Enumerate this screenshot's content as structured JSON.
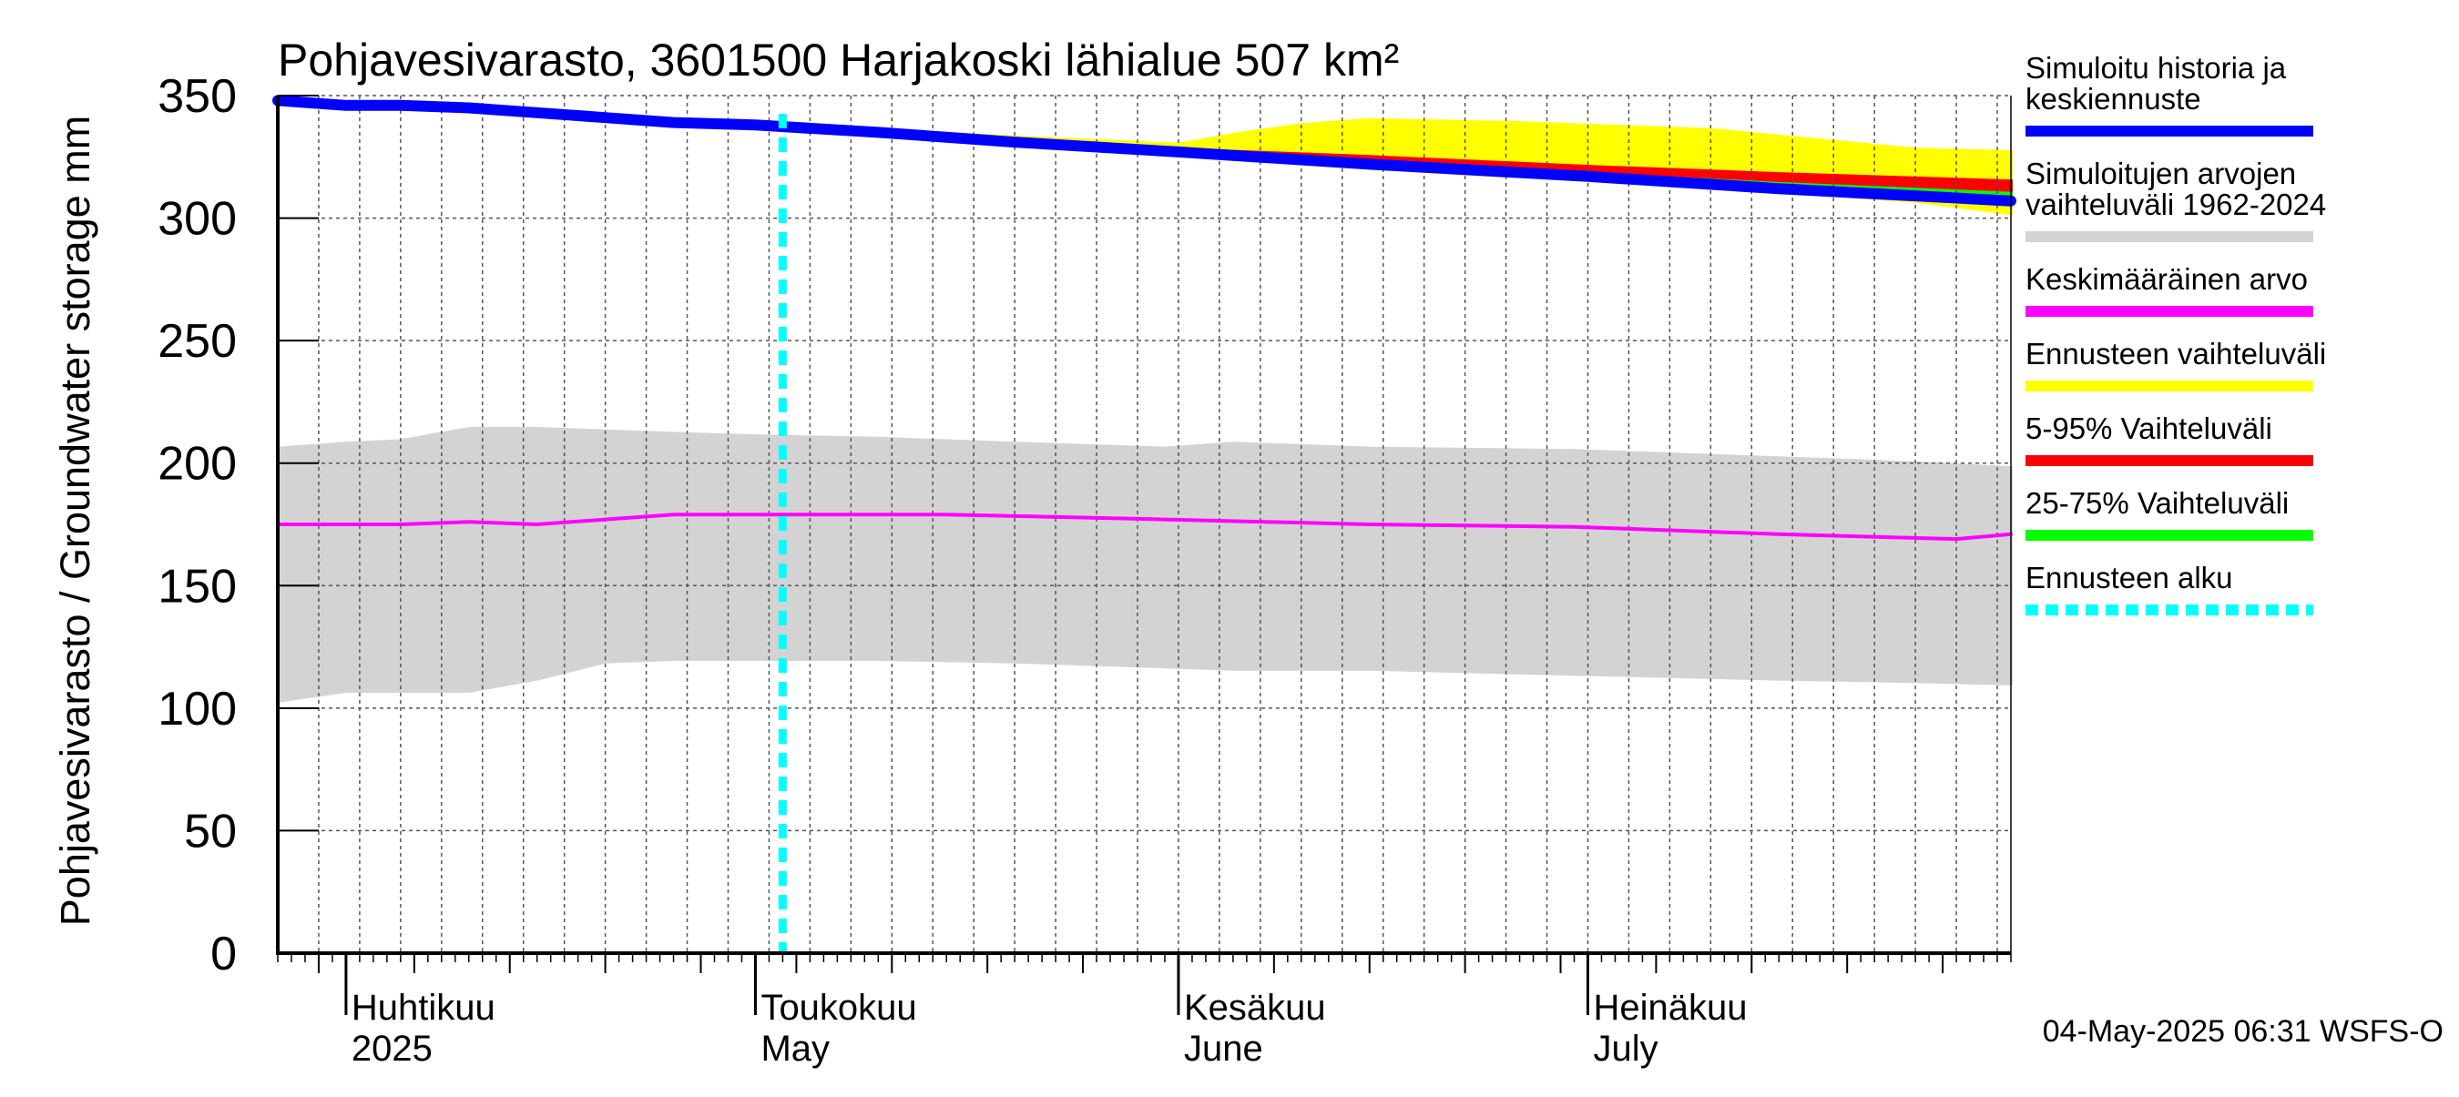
{
  "chart_data": {
    "type": "area",
    "title": "Pohjavesivarasto, 3601500 Harjakoski lähialue 507 km²",
    "ylabel": "Pohjavesivarasto / Groundwater storage   mm",
    "footer": "04-May-2025 06:31 WSFS-O",
    "ylim": [
      0,
      350
    ],
    "yticks": [
      0,
      50,
      100,
      150,
      200,
      250,
      300,
      350
    ],
    "xlim": [
      "2025-03-27",
      "2025-08-01"
    ],
    "grid": true,
    "legend_position": "right",
    "months": [
      {
        "line1": "Huhtikuu",
        "line2": "2025",
        "start": "2025-04-01"
      },
      {
        "line1": "Toukokuu",
        "line2": "May",
        "start": "2025-05-01"
      },
      {
        "line1": "Kesäkuu",
        "line2": "June",
        "start": "2025-06-01"
      },
      {
        "line1": "Heinäkuu",
        "line2": "July",
        "start": "2025-07-01"
      }
    ],
    "forecast_start": "2025-05-03",
    "legend": [
      {
        "label": "Simuloitu historia ja keskiennuste",
        "lines": [
          "Simuloitu historia ja",
          "keskiennuste"
        ],
        "color": "#0000ff",
        "style": "solid"
      },
      {
        "label": "Simuloitujen arvojen vaihteluväli 1962-2024",
        "lines": [
          "Simuloitujen arvojen",
          "vaihteluväli 1962-2024"
        ],
        "color": "#d3d3d3",
        "style": "solid"
      },
      {
        "label": "Keskimääräinen arvo",
        "lines": [
          "Keskimääräinen arvo"
        ],
        "color": "#ff00ff",
        "style": "solid"
      },
      {
        "label": "Ennusteen vaihteluväli",
        "lines": [
          "Ennusteen vaihteluväli"
        ],
        "color": "#ffff00",
        "style": "solid"
      },
      {
        "label": "5-95% Vaihteluväli",
        "lines": [
          "5-95% Vaihteluväli"
        ],
        "color": "#ff0000",
        "style": "solid"
      },
      {
        "label": "25-75% Vaihteluväli",
        "lines": [
          "25-75% Vaihteluväli"
        ],
        "color": "#00ff00",
        "style": "solid"
      },
      {
        "label": "Ennusteen alku",
        "lines": [
          "Ennusteen alku"
        ],
        "color": "#00ffff",
        "style": "dashed"
      }
    ],
    "series": [
      {
        "name": "Simuloitujen arvojen vaihteluväli 1962-2024",
        "kind": "band",
        "color": "#d3d3d3",
        "x": [
          "2025-03-27",
          "2025-04-01",
          "2025-04-05",
          "2025-04-10",
          "2025-04-15",
          "2025-04-20",
          "2025-04-25",
          "2025-05-01",
          "2025-05-10",
          "2025-05-20",
          "2025-05-31",
          "2025-06-05",
          "2025-06-15",
          "2025-06-30",
          "2025-07-15",
          "2025-07-25",
          "2025-08-01"
        ],
        "lower": [
          103,
          107,
          107,
          107,
          112,
          119,
          120,
          120,
          120,
          119,
          117,
          116,
          116,
          114,
          112,
          111,
          110
        ],
        "upper": [
          206,
          208,
          209,
          214,
          214,
          213,
          212,
          211,
          210,
          208,
          206,
          208,
          206,
          205,
          202,
          200,
          198
        ]
      },
      {
        "name": "Keskimääräinen arvo",
        "kind": "line",
        "color": "#ff00ff",
        "x": [
          "2025-03-27",
          "2025-04-05",
          "2025-04-10",
          "2025-04-15",
          "2025-04-20",
          "2025-04-25",
          "2025-05-01",
          "2025-05-10",
          "2025-05-15",
          "2025-05-31",
          "2025-06-15",
          "2025-06-30",
          "2025-07-15",
          "2025-07-28",
          "2025-08-01"
        ],
        "values": [
          175,
          175,
          176,
          175,
          177,
          179,
          179,
          179,
          179,
          177,
          175,
          174,
          171,
          169,
          171
        ]
      },
      {
        "name": "Ennusteen vaihteluväli",
        "kind": "band",
        "color": "#ffff00",
        "x": [
          "2025-05-03",
          "2025-05-20",
          "2025-06-01",
          "2025-06-05",
          "2025-06-10",
          "2025-06-15",
          "2025-06-25",
          "2025-07-10",
          "2025-07-25",
          "2025-08-01"
        ],
        "lower": [
          338,
          332,
          327,
          325,
          323,
          321,
          318,
          313,
          307,
          302
        ],
        "upper": [
          338,
          333,
          330,
          334,
          338,
          340,
          339,
          336,
          328,
          327
        ]
      },
      {
        "name": "5-95% Vaihteluväli",
        "kind": "band",
        "color": "#ff0000",
        "x": [
          "2025-05-03",
          "2025-06-01",
          "2025-06-15",
          "2025-07-01",
          "2025-07-15",
          "2025-08-01"
        ],
        "lower": [
          338,
          327,
          323,
          318,
          313,
          306
        ],
        "upper": [
          338,
          328,
          325,
          321,
          318,
          315
        ]
      },
      {
        "name": "25-75% Vaihteluväli",
        "kind": "band",
        "color": "#00ff00",
        "x": [
          "2025-05-03",
          "2025-06-01",
          "2025-06-15",
          "2025-07-01",
          "2025-07-15",
          "2025-08-01"
        ],
        "lower": [
          338,
          327,
          322,
          317,
          313,
          307
        ],
        "upper": [
          338,
          327,
          323,
          318,
          314,
          310
        ]
      },
      {
        "name": "Simuloitu historia ja keskiennuste",
        "kind": "line",
        "color": "#0000ff",
        "x": [
          "2025-03-27",
          "2025-04-01",
          "2025-04-05",
          "2025-04-10",
          "2025-04-15",
          "2025-04-20",
          "2025-04-25",
          "2025-05-01",
          "2025-05-10",
          "2025-05-20",
          "2025-06-01",
          "2025-06-15",
          "2025-07-01",
          "2025-07-15",
          "2025-08-01"
        ],
        "values": [
          348,
          346,
          346,
          345,
          343,
          341,
          339,
          338,
          335,
          331,
          327,
          322,
          317,
          312,
          307
        ]
      }
    ]
  }
}
